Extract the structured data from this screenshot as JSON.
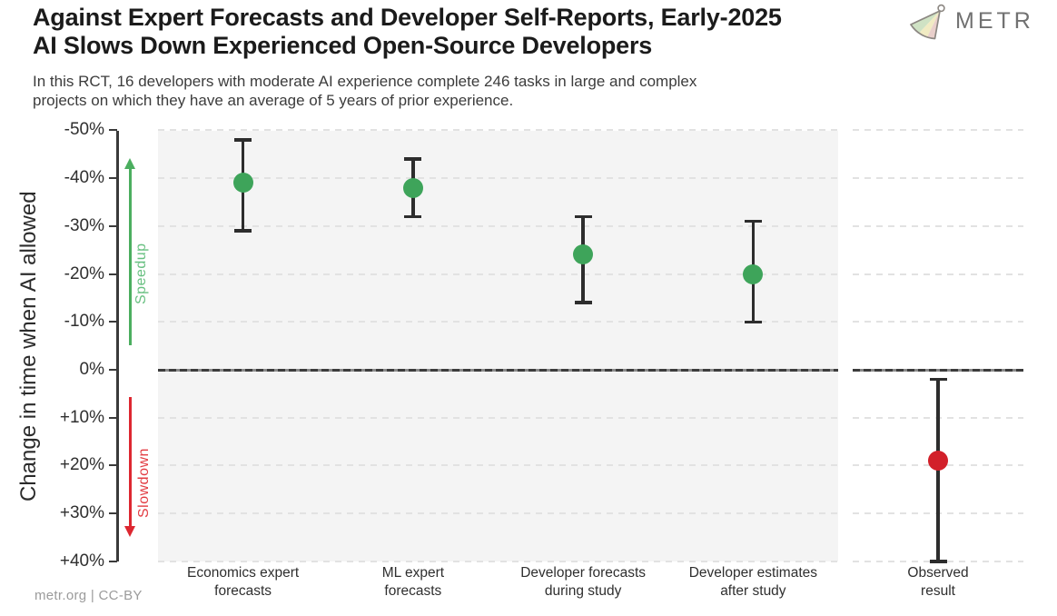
{
  "header": {
    "title": "Against Expert Forecasts and Developer Self-Reports, Early-2025\nAI Slows Down Experienced Open-Source Developers",
    "subtitle": "In this RCT, 16 developers with moderate AI experience complete 246 tasks in large and complex\nprojects on which they have an average of 5 years of prior experience.",
    "logo_text": "METR"
  },
  "footer": {
    "credit": "metr.org  |  CC-BY"
  },
  "chart_data": {
    "type": "scatter",
    "title": "Against Expert Forecasts and Developer Self-Reports, Early-2025 AI Slows Down Experienced Open-Source Developers",
    "xlabel": "",
    "ylabel": "Change in time when AI allowed",
    "y_axis": {
      "inverted": true,
      "ylim": [
        -50,
        40
      ],
      "unit": "percent",
      "grid": "dashed horizontal",
      "ticks": [
        {
          "value": -50,
          "label": "-50%"
        },
        {
          "value": -40,
          "label": "-40%"
        },
        {
          "value": -30,
          "label": "-30%"
        },
        {
          "value": -20,
          "label": "-20%"
        },
        {
          "value": -10,
          "label": "-10%"
        },
        {
          "value": 0,
          "label": "0%"
        },
        {
          "value": 10,
          "label": "+10%"
        },
        {
          "value": 20,
          "label": "+20%"
        },
        {
          "value": 30,
          "label": "+30%"
        },
        {
          "value": 40,
          "label": "+40%"
        }
      ]
    },
    "points": [
      {
        "category": "Economics expert\nforecasts",
        "value": -39,
        "ci": [
          -48,
          -29
        ],
        "group": "forecast",
        "panel": "main"
      },
      {
        "category": "ML expert\nforecasts",
        "value": -38,
        "ci": [
          -44,
          -32
        ],
        "group": "forecast",
        "panel": "main"
      },
      {
        "category": "Developer forecasts\nduring study",
        "value": -24,
        "ci": [
          -32,
          -14
        ],
        "group": "forecast",
        "panel": "main"
      },
      {
        "category": "Developer estimates\nafter study",
        "value": -20,
        "ci": [
          -31,
          -10
        ],
        "group": "forecast",
        "panel": "main"
      },
      {
        "category": "Observed\nresult",
        "value": 19,
        "ci": [
          2,
          40
        ],
        "group": "observed",
        "panel": "side"
      }
    ],
    "colors": {
      "forecast": "#3ea45a",
      "observed": "#d2202a",
      "error_bar": "#2d2d2d",
      "main_panel_background": "#f4f4f4",
      "side_panel_background": "#ffffff",
      "zero_line": "#3c3c3c",
      "gridline": "#e2e2e2"
    },
    "annotations": {
      "speedup": {
        "label": "Speedup",
        "direction": "up",
        "arrow_color": "#4bae5f",
        "label_color": "#68c081"
      },
      "slowdown": {
        "label": "Slowdown",
        "direction": "down",
        "arrow_color": "#dd2730",
        "label_color": "#e23c42"
      }
    }
  }
}
